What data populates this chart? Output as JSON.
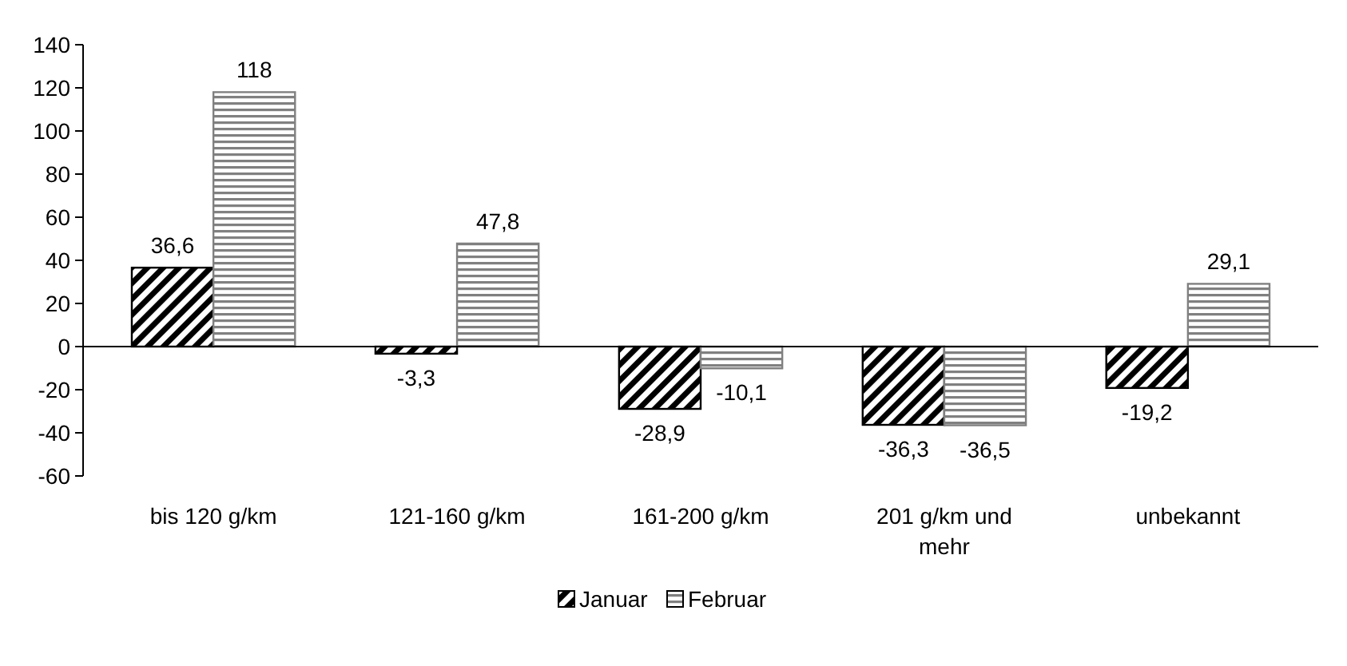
{
  "chart_data": {
    "type": "bar",
    "categories": [
      "bis 120 g/km",
      "121-160 g/km",
      "161-200 g/km",
      "201 g/km und mehr",
      "unbekannt"
    ],
    "series": [
      {
        "name": "Januar",
        "color": "#000000",
        "values": [
          36.6,
          -3.3,
          -28.9,
          -36.3,
          -19.2
        ],
        "value_labels": [
          "36,6",
          "-3,3",
          "-28,9",
          "-36,3",
          "-19,2"
        ]
      },
      {
        "name": "Februar",
        "color": "#808080",
        "values": [
          118,
          47.8,
          -10.1,
          -36.5,
          29.1
        ],
        "value_labels": [
          "118",
          "47,8",
          "-10,1",
          "-36,5",
          "29,1"
        ]
      }
    ],
    "ylim": [
      -60,
      140
    ],
    "yticks": [
      -60,
      -40,
      -20,
      0,
      20,
      40,
      60,
      80,
      100,
      120,
      140
    ],
    "legend": "bottom"
  }
}
